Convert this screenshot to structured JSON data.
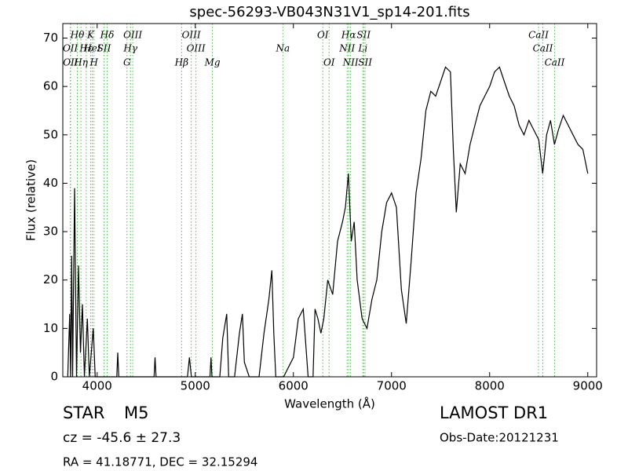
{
  "chart_data": {
    "type": "line",
    "title": "spec-56293-VB043N31V1_sp14-201.fits",
    "x_label": "Wavelength (Å)",
    "y_label": "Flux (relative)",
    "xlim": [
      3650,
      9090
    ],
    "ylim": [
      0,
      73
    ],
    "xticks": [
      4000,
      5000,
      6000,
      7000,
      8000,
      9000
    ],
    "yticks": [
      0,
      10,
      20,
      30,
      40,
      50,
      60,
      70
    ],
    "color": "#000000",
    "annotation_color": "#55bb55",
    "annotations": [
      [
        {
          "text": "Hθ",
          "x": 3798
        },
        {
          "text": "K",
          "x": 3934
        },
        {
          "text": "Hδ",
          "x": 4102
        },
        {
          "text": "OIII",
          "x": 4363
        },
        {
          "text": "OIII",
          "x": 4959
        },
        {
          "text": "OI",
          "x": 6300
        },
        {
          "text": "Hα",
          "x": 6563
        },
        {
          "text": "SII",
          "x": 6716
        },
        {
          "text": "CaII",
          "x": 8498
        }
      ],
      [
        {
          "text": "OII",
          "x": 3727
        },
        {
          "text": "Hε",
          "x": 3889
        },
        {
          "text": "HeI",
          "x": 3950
        },
        {
          "text": "SII",
          "x": 4070
        },
        {
          "text": "Hγ",
          "x": 4340
        },
        {
          "text": "OIII",
          "x": 5007
        },
        {
          "text": "Na",
          "x": 5893
        },
        {
          "text": "NII",
          "x": 6548
        },
        {
          "text": "Li",
          "x": 6708
        },
        {
          "text": "CaII",
          "x": 8542
        }
      ],
      [
        {
          "text": "OII",
          "x": 3729
        },
        {
          "text": "Hη",
          "x": 3835
        },
        {
          "text": "H",
          "x": 3968
        },
        {
          "text": "G",
          "x": 4304
        },
        {
          "text": "Hβ",
          "x": 4861
        },
        {
          "text": "Mg",
          "x": 5175
        },
        {
          "text": "OI",
          "x": 6364
        },
        {
          "text": "NII",
          "x": 6583
        },
        {
          "text": "SII",
          "x": 6731
        },
        {
          "text": "CaII",
          "x": 8662
        }
      ]
    ],
    "x": [
      3700,
      3720,
      3730,
      3740,
      3750,
      3770,
      3790,
      3810,
      3830,
      3850,
      3870,
      3900,
      3920,
      3960,
      3980,
      4200,
      4210,
      4220,
      4580,
      4590,
      4600,
      4920,
      4940,
      4960,
      5150,
      5160,
      5170,
      5250,
      5280,
      5320,
      5340,
      5400,
      5450,
      5480,
      5500,
      5550,
      5650,
      5700,
      5750,
      5780,
      5800,
      5820,
      5900,
      6000,
      6050,
      6100,
      6150,
      6200,
      6220,
      6250,
      6280,
      6310,
      6350,
      6400,
      6450,
      6500,
      6530,
      6560,
      6590,
      6620,
      6650,
      6700,
      6750,
      6800,
      6850,
      6900,
      6950,
      7000,
      7050,
      7100,
      7150,
      7200,
      7250,
      7300,
      7350,
      7400,
      7450,
      7500,
      7550,
      7600,
      7630,
      7660,
      7700,
      7750,
      7800,
      7850,
      7900,
      7950,
      8000,
      8050,
      8100,
      8150,
      8200,
      8250,
      8300,
      8350,
      8400,
      8450,
      8500,
      8540,
      8580,
      8620,
      8660,
      8700,
      8750,
      8800,
      8850,
      8900,
      8950,
      9000
    ],
    "values": [
      0,
      13,
      0,
      25,
      0,
      39,
      0,
      23,
      5,
      15,
      0,
      12,
      0,
      10,
      0,
      0,
      5,
      0,
      0,
      4,
      0,
      0,
      4,
      0,
      0,
      4,
      0,
      0,
      8,
      13,
      0,
      0,
      9,
      13,
      3,
      0,
      0,
      9,
      16,
      22,
      9,
      0,
      0,
      4,
      12,
      14,
      0,
      0,
      14,
      12,
      9,
      12,
      20,
      17,
      28,
      32,
      35,
      42,
      28,
      32,
      20,
      12,
      10,
      16,
      20,
      30,
      36,
      38,
      35,
      18,
      11,
      24,
      38,
      45,
      55,
      59,
      58,
      61,
      64,
      63,
      47,
      34,
      44,
      42,
      48,
      52,
      56,
      58,
      60,
      63,
      64,
      61,
      58,
      56,
      52,
      50,
      53,
      51,
      49,
      42,
      50,
      53,
      48,
      51,
      54,
      52,
      50,
      48,
      47,
      42
    ],
    "object_class": "STAR",
    "subclass": "M5",
    "cz": "cz = -45.6 ± 27.3",
    "coords": "RA = 41.18771, DEC = 32.15294",
    "survey": "LAMOST DR1",
    "obs_date": "Obs-Date:20121231"
  }
}
